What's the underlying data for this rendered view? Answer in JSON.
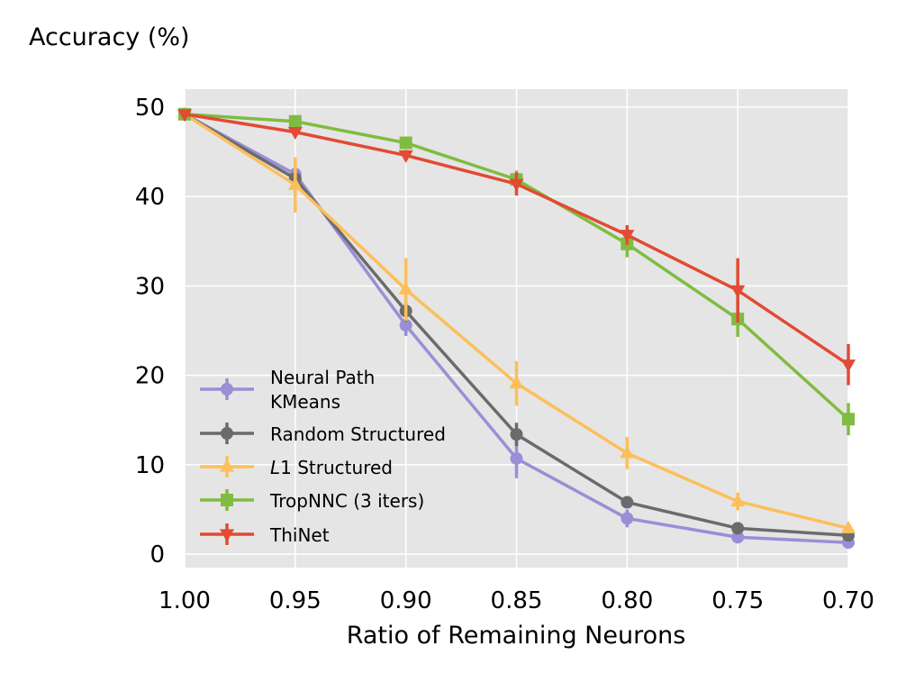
{
  "chart_data": {
    "type": "line",
    "title": "",
    "xlabel": "Ratio of Remaining Neurons",
    "ylabel": "Accuracy (%)",
    "x": [
      1.0,
      0.95,
      0.9,
      0.85,
      0.8,
      0.75,
      0.7
    ],
    "x_tick_labels": [
      "1.00",
      "0.95",
      "0.90",
      "0.85",
      "0.80",
      "0.75",
      "0.70"
    ],
    "y_ticks": [
      0,
      10,
      20,
      30,
      40,
      50
    ],
    "y_tick_labels": [
      "0",
      "10",
      "20",
      "30",
      "40",
      "50"
    ],
    "xlim": [
      1.0,
      0.7
    ],
    "ylim": [
      -1.5,
      52
    ],
    "x_reversed": true,
    "grid": true,
    "legend_position": "lower-left",
    "series": [
      {
        "name": "Neural Path KMeans",
        "legend_lines": [
          "Neural Path",
          "KMeans"
        ],
        "marker": "circle",
        "color": "#9a8fd6",
        "values": [
          49.2,
          42.5,
          25.6,
          10.7,
          4.0,
          1.9,
          1.3
        ],
        "errors": [
          0.4,
          0.8,
          1.2,
          2.2,
          1.0,
          0.4,
          0.3
        ]
      },
      {
        "name": "Random Structured",
        "legend_lines": [
          "Random Structured"
        ],
        "marker": "circle",
        "color": "#6b6b6b",
        "values": [
          49.2,
          42.0,
          27.2,
          13.4,
          5.8,
          2.9,
          2.1
        ],
        "errors": [
          0.4,
          0.8,
          1.2,
          1.3,
          0.5,
          0.4,
          0.3
        ]
      },
      {
        "name": "L1 Structured",
        "legend_lines": [
          "L1 Structured"
        ],
        "legend_italic_prefix": "L",
        "legend_rest": "1 Structured",
        "marker": "triangle-up",
        "color": "#fcbf5a",
        "values": [
          49.2,
          41.3,
          29.6,
          19.1,
          11.3,
          5.9,
          2.9
        ],
        "errors": [
          0.4,
          3.1,
          3.5,
          2.5,
          1.8,
          1.0,
          0.4
        ]
      },
      {
        "name": "TropNNC (3 iters)",
        "legend_lines": [
          "TropNNC (3 iters)"
        ],
        "marker": "square",
        "color": "#7fbc41",
        "values": [
          49.2,
          48.4,
          46.0,
          41.9,
          34.7,
          26.3,
          15.1
        ],
        "errors": [
          0.4,
          0.4,
          0.6,
          1.0,
          1.5,
          2.0,
          1.8
        ]
      },
      {
        "name": "ThiNet",
        "legend_lines": [
          "ThiNet"
        ],
        "marker": "triangle-down",
        "color": "#e24a33",
        "values": [
          49.2,
          47.2,
          44.6,
          41.4,
          35.7,
          29.5,
          21.2
        ],
        "errors": [
          0.4,
          0.5,
          0.6,
          1.3,
          1.1,
          3.6,
          2.3
        ]
      }
    ]
  }
}
